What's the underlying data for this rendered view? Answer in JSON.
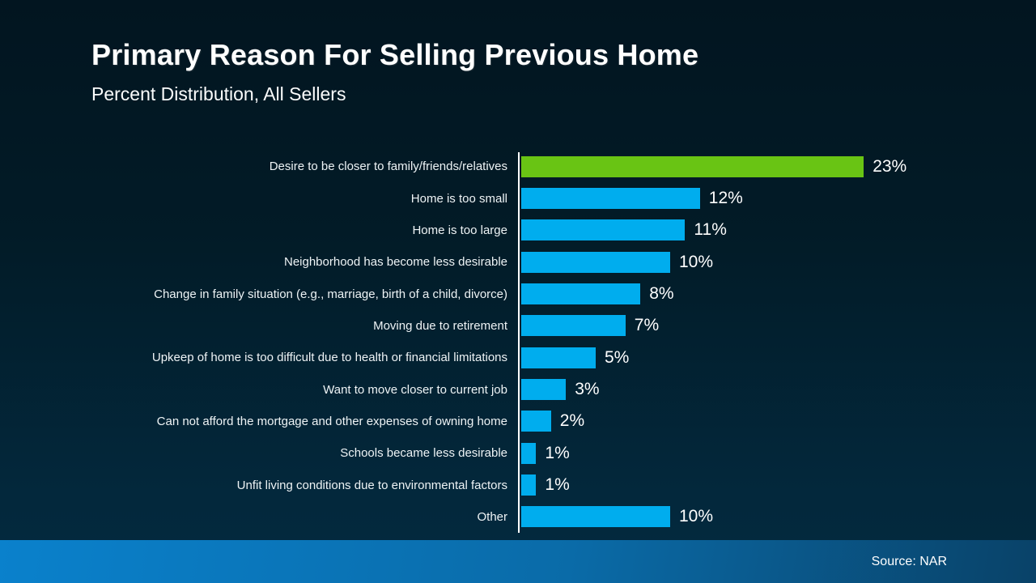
{
  "header": {
    "title": "Primary Reason For Selling Previous Home",
    "subtitle": "Percent Distribution, All Sellers"
  },
  "footer": {
    "source": "Source: NAR"
  },
  "colors": {
    "highlight_bar": "#69c414",
    "default_bar": "#00adee",
    "axis_line": "#ffffff",
    "background_top": "#021520",
    "background_bottom": "#032a3f",
    "footer_left": "#0a81cc",
    "footer_right": "#094268",
    "text": "#ffffff"
  },
  "chart_data": {
    "type": "bar",
    "orientation": "horizontal",
    "title": "Primary Reason For Selling Previous Home",
    "subtitle": "Percent Distribution, All Sellers",
    "unit": "%",
    "xlim": [
      0,
      25
    ],
    "grid": false,
    "legend": false,
    "categories": [
      "Desire to be closer to family/friends/relatives",
      "Home is too small",
      "Home is too large",
      "Neighborhood has become less desirable",
      "Change in family situation (e.g., marriage, birth of a child, divorce)",
      "Moving due to retirement",
      "Upkeep of home is too difficult due to health or financial limitations",
      "Want to move closer to current job",
      "Can not afford the mortgage and other expenses of owning home",
      "Schools became less desirable",
      "Unfit living conditions due to environmental factors",
      "Other"
    ],
    "values": [
      23,
      12,
      11,
      10,
      8,
      7,
      5,
      3,
      2,
      1,
      1,
      10
    ],
    "value_labels": [
      "23%",
      "12%",
      "11%",
      "10%",
      "8%",
      "7%",
      "5%",
      "3%",
      "2%",
      "1%",
      "1%",
      "10%"
    ],
    "bar_colors": [
      "#69c414",
      "#00adee",
      "#00adee",
      "#00adee",
      "#00adee",
      "#00adee",
      "#00adee",
      "#00adee",
      "#00adee",
      "#00adee",
      "#00adee",
      "#00adee"
    ]
  }
}
